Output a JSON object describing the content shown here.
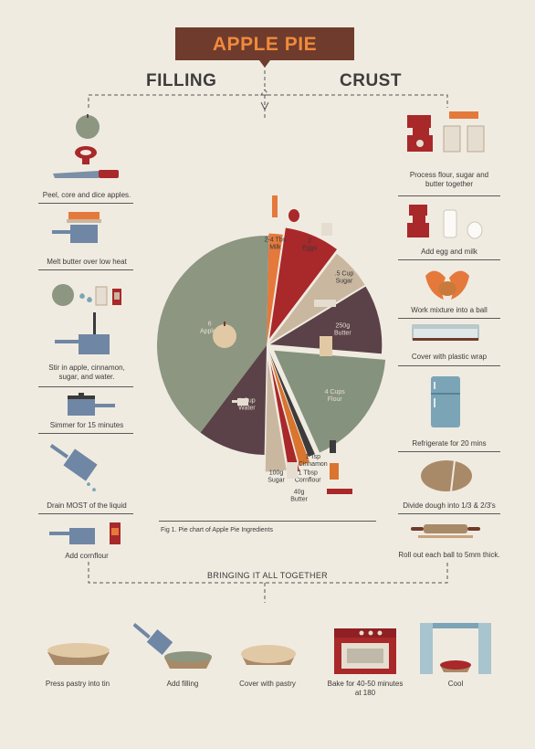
{
  "title": "APPLE PIE",
  "filling_header": "FILLING",
  "crust_header": "CRUST",
  "filling_steps": [
    "Peel, core and dice apples.",
    "Melt butter over low heat",
    "Stir in apple, cinnamon,\nsugar, and water.",
    "Simmer for 15 minutes",
    "Drain MOST of the liquid",
    "Add cornflour"
  ],
  "crust_steps": [
    "Process flour, sugar and\nbutter together",
    "Add egg and milk",
    "Work mixture into a ball",
    "Cover with plastic wrap",
    "Refrigerate for 20 mins",
    "Divide dough into 1/3 & 2/3's",
    "Roll out each ball to 5mm thick."
  ],
  "figure_caption_prefix": "Fig 1.",
  "figure_caption": "Pie chart of Apple Pie Ingredients",
  "together_header": "BRINGING IT ALL TOGETHER",
  "final_steps": [
    "Press pastry into tin",
    "Add filling",
    "Cover with pastry",
    "Bake for 40-50 minutes\nat 180",
    "Cool"
  ],
  "chart_data": {
    "type": "pie",
    "slices": [
      {
        "label": "2-4 Tbs\nMilk",
        "value": 2,
        "color": "#e5793b"
      },
      {
        "label": "2\nEggs",
        "value": 8,
        "color": "#a9282a"
      },
      {
        "label": ".5 Cup\nSugar",
        "value": 6,
        "color": "#c9b7a0"
      },
      {
        "label": "250g\nButter",
        "value": 10,
        "color": "#5a4248"
      },
      {
        "label": "4 Cups\nFlour",
        "value": 17,
        "color": "#85927d"
      },
      {
        "label": "1 Tsp\nCinnamon",
        "value": 1,
        "color": "#3c3a3a"
      },
      {
        "label": "1 Tbsp\nCornflour",
        "value": 1.5,
        "color": "#d9752f"
      },
      {
        "label": "40g\nButter",
        "value": 1.5,
        "color": "#a9282a"
      },
      {
        "label": "100g\nSugar",
        "value": 3,
        "color": "#c9b7a0"
      },
      {
        "label": "1 Cup\nWater",
        "value": 10,
        "color": "#5a4248"
      },
      {
        "label": "6\nApples",
        "value": 40,
        "color": "#8c9681"
      }
    ],
    "colors": {
      "accent": "#f08a3c",
      "banner": "#6f3b2c",
      "background": "#f0ebe1"
    }
  }
}
